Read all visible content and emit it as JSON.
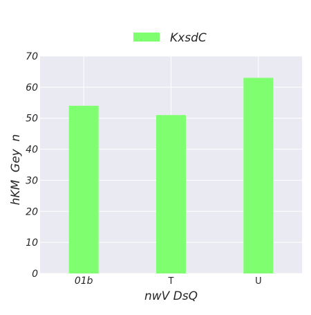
{
  "chart_data": {
    "type": "bar",
    "categories": [
      "01b",
      "T",
      "U"
    ],
    "series": [
      {
        "name": "KxsdC",
        "values": [
          54,
          51,
          63
        ],
        "color": "#7fff6f"
      }
    ],
    "xlabel": "nwV DsQ",
    "ylabel": "hKM  Gey  n",
    "ylim": [
      0,
      70
    ],
    "yticks": [
      0,
      10,
      20,
      30,
      40,
      50,
      60,
      70
    ],
    "grid": true,
    "legend": "top-center",
    "background_color": "#eaeaf2",
    "grid_color": "#ffffff"
  }
}
